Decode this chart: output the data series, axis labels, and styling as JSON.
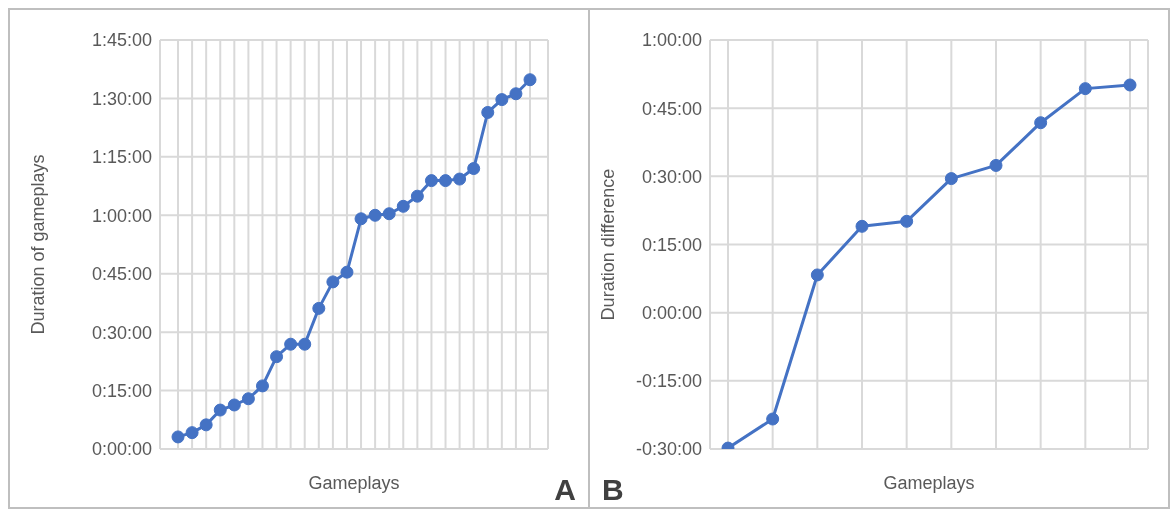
{
  "chart_data": [
    {
      "type": "line",
      "xlabel": "Gameplays",
      "ylabel": "Duration of gameplays",
      "annotations": [
        "A"
      ],
      "color": "#4472c4",
      "marker": "circle",
      "line_style": "solid",
      "grid": true,
      "tick_labels": "y",
      "categories": [
        null,
        null,
        null,
        null,
        null,
        null,
        null,
        null,
        null,
        null,
        null,
        null,
        null,
        null,
        null,
        null,
        null,
        null,
        null,
        null,
        null,
        null,
        null,
        null,
        null,
        null
      ],
      "values": [
        3.1,
        4.2,
        6.2,
        10,
        11.3,
        12.9,
        16.2,
        23.7,
        26.9,
        26.9,
        36.1,
        42.9,
        45.4,
        59.1,
        60,
        60.4,
        62.3,
        64.9,
        68.9,
        68.9,
        69.3,
        72,
        86.4,
        89.7,
        91.2,
        94.8
      ],
      "ylim": [
        0,
        105
      ],
      "yticks": [
        {
          "value": 0,
          "label": "0:00:00"
        },
        {
          "value": 15,
          "label": "0:15:00"
        },
        {
          "value": 30,
          "label": "0:30:00"
        },
        {
          "value": 45,
          "label": "0:45:00"
        },
        {
          "value": 60,
          "label": "1:00:00"
        },
        {
          "value": 75,
          "label": "1:15:00"
        },
        {
          "value": 90,
          "label": "1:30:00"
        },
        {
          "value": 105,
          "label": "1:45:00"
        }
      ]
    },
    {
      "type": "line",
      "xlabel": "Gameplays",
      "ylabel": "Duration difference",
      "annotations": [
        "B"
      ],
      "color": "#4472c4",
      "marker": "circle",
      "line_style": "solid",
      "grid": true,
      "tick_labels": "y",
      "categories": [
        null,
        null,
        null,
        null,
        null,
        null,
        null,
        null,
        null,
        null
      ],
      "values": [
        -29.8,
        -23.4,
        8.3,
        19,
        20.1,
        29.5,
        32.4,
        41.8,
        49.3,
        50.1
      ],
      "ylim": [
        -30,
        60
      ],
      "yticks": [
        {
          "value": -30,
          "label": "-0:30:00"
        },
        {
          "value": -15,
          "label": "-0:15:00"
        },
        {
          "value": 0,
          "label": "0:00:00"
        },
        {
          "value": 15,
          "label": "0:15:00"
        },
        {
          "value": 30,
          "label": "0:30:00"
        },
        {
          "value": 45,
          "label": "0:45:00"
        },
        {
          "value": 60,
          "label": "1:00:00"
        }
      ]
    }
  ]
}
